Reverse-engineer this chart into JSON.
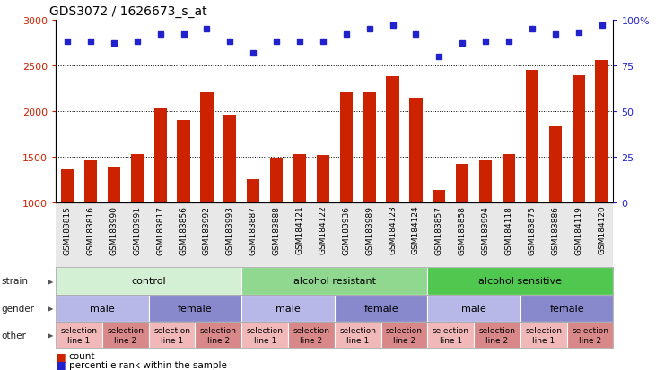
{
  "title": "GDS3072 / 1626673_s_at",
  "samples": [
    "GSM183815",
    "GSM183816",
    "GSM183990",
    "GSM183991",
    "GSM183817",
    "GSM183856",
    "GSM183992",
    "GSM183993",
    "GSM183887",
    "GSM183888",
    "GSM184121",
    "GSM184122",
    "GSM183936",
    "GSM183989",
    "GSM184123",
    "GSM184124",
    "GSM183857",
    "GSM183858",
    "GSM183994",
    "GSM184118",
    "GSM183875",
    "GSM183886",
    "GSM184119",
    "GSM184120"
  ],
  "counts": [
    1360,
    1460,
    1390,
    1530,
    2040,
    1900,
    2200,
    1960,
    1250,
    1490,
    1530,
    1520,
    2200,
    2200,
    2380,
    2150,
    1140,
    1420,
    1460,
    1530,
    2450,
    1830,
    2390,
    2560
  ],
  "percentile": [
    88,
    88,
    87,
    88,
    92,
    92,
    95,
    88,
    82,
    88,
    88,
    88,
    92,
    95,
    97,
    92,
    80,
    87,
    88,
    88,
    95,
    92,
    93,
    97
  ],
  "strain_groups": [
    {
      "label": "control",
      "start": 0,
      "end": 8,
      "color": "#d4f0d4"
    },
    {
      "label": "alcohol resistant",
      "start": 8,
      "end": 16,
      "color": "#90d890"
    },
    {
      "label": "alcohol sensitive",
      "start": 16,
      "end": 24,
      "color": "#50c850"
    }
  ],
  "gender_groups": [
    {
      "label": "male",
      "start": 0,
      "end": 4,
      "color": "#b8b8e8"
    },
    {
      "label": "female",
      "start": 4,
      "end": 8,
      "color": "#8888cc"
    },
    {
      "label": "male",
      "start": 8,
      "end": 12,
      "color": "#b8b8e8"
    },
    {
      "label": "female",
      "start": 12,
      "end": 16,
      "color": "#8888cc"
    },
    {
      "label": "male",
      "start": 16,
      "end": 20,
      "color": "#b8b8e8"
    },
    {
      "label": "female",
      "start": 20,
      "end": 24,
      "color": "#8888cc"
    }
  ],
  "other_groups": [
    {
      "label": "selection\nline 1",
      "start": 0,
      "end": 2,
      "color": "#f0b8b8"
    },
    {
      "label": "selection\nline 2",
      "start": 2,
      "end": 4,
      "color": "#d88888"
    },
    {
      "label": "selection\nline 1",
      "start": 4,
      "end": 6,
      "color": "#f0b8b8"
    },
    {
      "label": "selection\nline 2",
      "start": 6,
      "end": 8,
      "color": "#d88888"
    },
    {
      "label": "selection\nline 1",
      "start": 8,
      "end": 10,
      "color": "#f0b8b8"
    },
    {
      "label": "selection\nline 2",
      "start": 10,
      "end": 12,
      "color": "#d88888"
    },
    {
      "label": "selection\nline 1",
      "start": 12,
      "end": 14,
      "color": "#f0b8b8"
    },
    {
      "label": "selection\nline 2",
      "start": 14,
      "end": 16,
      "color": "#d88888"
    },
    {
      "label": "selection\nline 1",
      "start": 16,
      "end": 18,
      "color": "#f0b8b8"
    },
    {
      "label": "selection\nline 2",
      "start": 18,
      "end": 20,
      "color": "#d88888"
    },
    {
      "label": "selection\nline 1",
      "start": 20,
      "end": 22,
      "color": "#f0b8b8"
    },
    {
      "label": "selection\nline 2",
      "start": 22,
      "end": 24,
      "color": "#d88888"
    }
  ],
  "bar_color": "#cc2200",
  "dot_color": "#2222cc",
  "ylim_left": [
    1000,
    3000
  ],
  "ylim_right": [
    0,
    100
  ],
  "yticks_left": [
    1000,
    1500,
    2000,
    2500,
    3000
  ],
  "yticks_right": [
    0,
    25,
    50,
    75,
    100
  ],
  "plot_bg": "#f0f0f0"
}
